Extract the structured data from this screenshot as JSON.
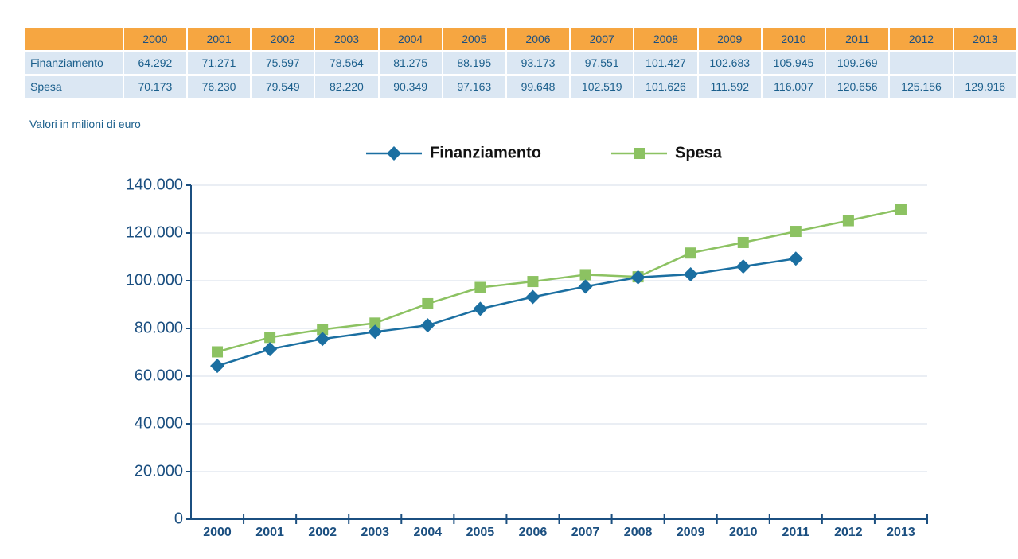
{
  "table": {
    "columns": [
      "2000",
      "2001",
      "2002",
      "2003",
      "2004",
      "2005",
      "2006",
      "2007",
      "2008",
      "2009",
      "2010",
      "2011",
      "2012",
      "2013"
    ],
    "rows": [
      {
        "label": "Finanziamento",
        "cells": [
          "64.292",
          "71.271",
          "75.597",
          "78.564",
          "81.275",
          "88.195",
          "93.173",
          "97.551",
          "101.427",
          "102.683",
          "105.945",
          "109.269",
          null,
          null
        ]
      },
      {
        "label": "Spesa",
        "cells": [
          "70.173",
          "76.230",
          "79.549",
          "82.220",
          "90.349",
          "97.163",
          "99.648",
          "102.519",
          "101.626",
          "111.592",
          "116.007",
          "120.656",
          "125.156",
          "129.916"
        ]
      }
    ],
    "note": "Valori in milioni di euro"
  },
  "chart_data": {
    "type": "line",
    "categories": [
      "2000",
      "2001",
      "2002",
      "2003",
      "2004",
      "2005",
      "2006",
      "2007",
      "2008",
      "2009",
      "2010",
      "2011",
      "2012",
      "2013"
    ],
    "series": [
      {
        "name": "Finanziamento",
        "color": "#1b6fa1",
        "marker": "diamond",
        "values": [
          64292,
          71271,
          75597,
          78564,
          81275,
          88195,
          93173,
          97551,
          101427,
          102683,
          105945,
          109269,
          null,
          null
        ]
      },
      {
        "name": "Spesa",
        "color": "#8cc262",
        "marker": "square",
        "values": [
          70173,
          76230,
          79549,
          82220,
          90349,
          97163,
          99648,
          102519,
          101626,
          111592,
          116007,
          120656,
          125156,
          129916
        ]
      }
    ],
    "ylim": [
      0,
      140000
    ],
    "yticks": [
      0,
      {
        "value": 20000,
        "label": "20.000"
      },
      {
        "value": 40000,
        "label": "40.000"
      },
      {
        "value": 60000,
        "label": "60.000"
      },
      {
        "value": 80000,
        "label": "80.000"
      },
      {
        "value": 100000,
        "label": "100.000"
      },
      {
        "value": 120000,
        "label": "120.000"
      },
      {
        "value": 140000,
        "label": "140.000"
      }
    ],
    "grid": true,
    "legend": "top"
  }
}
